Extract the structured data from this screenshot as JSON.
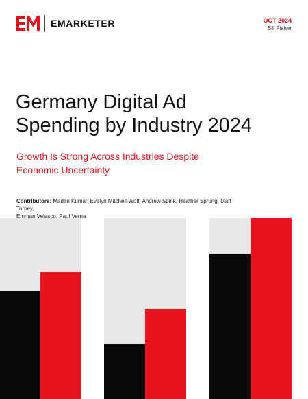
{
  "header": {
    "brand": "EMARKETER",
    "logo_icon": "em-logo-icon",
    "date": "OCT 2024",
    "author": "Bill Fisher"
  },
  "report": {
    "title_line1": "Germany Digital Ad",
    "title_line2": "Spending by Industry 2024",
    "subtitle_line1": "Growth Is Strong Across Industries Despite",
    "subtitle_line2": "Economic Uncertainty"
  },
  "contributors": {
    "label": "Contributors:",
    "names_line1": "Madan Kumar, Evelyn Mitchell-Wolf, Andrew Spink, Heather Sprung, Matt Torpey,",
    "names_line2": "Emman Velasco, Paul Verna"
  },
  "colors": {
    "accent": "#e0131e",
    "black": "#0a0a0a",
    "gray": "#e8e8e8"
  }
}
